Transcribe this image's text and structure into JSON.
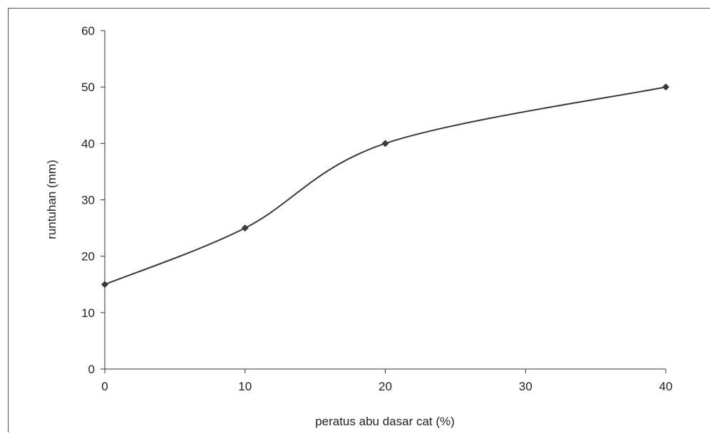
{
  "chart_data": {
    "type": "line",
    "title": "",
    "xlabel": "peratus abu dasar cat (%)",
    "ylabel": "runtuhan (mm)",
    "xlim": [
      0,
      40
    ],
    "ylim": [
      0,
      60
    ],
    "xticks": [
      0,
      10,
      20,
      30,
      40
    ],
    "yticks": [
      0,
      10,
      20,
      30,
      40,
      50,
      60
    ],
    "grid": false,
    "legend": "none",
    "line_color": "#3a3a3a",
    "smoothed": true,
    "series": [
      {
        "x": [
          0,
          10,
          20,
          40
        ],
        "y": [
          15,
          25,
          40,
          50
        ]
      }
    ]
  }
}
